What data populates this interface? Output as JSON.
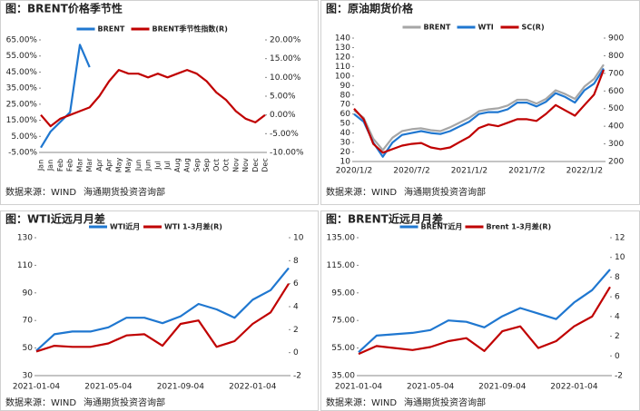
{
  "chart_data": [
    {
      "type": "line",
      "title": "图：BRENT价格季节性",
      "source": "数据来源：WIND",
      "org": "海通期货投资咨询部",
      "legend": "top",
      "x_label_rotate": true,
      "categories": [
        "Jan",
        "Jan",
        "Feb",
        "Feb",
        "Mar",
        "Mar",
        "Apr",
        "Apr",
        "May",
        "May",
        "Jun",
        "Jun",
        "Jul",
        "Jul",
        "Aug",
        "Aug",
        "Sep",
        "Sep",
        "Oct",
        "Oct",
        "Nov",
        "Nov",
        "Dec",
        "Dec"
      ],
      "series": [
        {
          "name": "BRENT",
          "color": "#1f77d0",
          "values": [
            -2,
            8,
            14,
            20,
            62,
            48,
            null,
            null,
            null,
            null,
            null,
            null,
            null,
            null,
            null,
            null,
            null,
            null,
            null,
            null,
            null,
            null,
            null,
            null
          ]
        },
        {
          "name": "BRENT季节性指数(R)",
          "color": "#c00000",
          "axis": "y2",
          "values": [
            0,
            -3,
            -1,
            0,
            1,
            2,
            5,
            9,
            12,
            11,
            11,
            10,
            11,
            10,
            11,
            12,
            11,
            9,
            6,
            4,
            1,
            -1,
            -2,
            0
          ]
        }
      ],
      "ylim": [
        -5,
        65
      ],
      "yticks": [
        {
          "value": -5,
          "label": "-5.00%"
        },
        {
          "value": 5,
          "label": "5.00%"
        },
        {
          "value": 15,
          "label": "15.00%"
        },
        {
          "value": 25,
          "label": "25.00%"
        },
        {
          "value": 35,
          "label": "35.00%"
        },
        {
          "value": 45,
          "label": "45.00%"
        },
        {
          "value": 55,
          "label": "55.00%"
        },
        {
          "value": 65,
          "label": "65.00%"
        }
      ],
      "y2lim": [
        -10,
        20
      ],
      "y2ticks": [
        {
          "value": -10,
          "label": "-10.00%"
        },
        {
          "value": -5,
          "label": "-5.00%"
        },
        {
          "value": 0,
          "label": "0.00%"
        },
        {
          "value": 5,
          "label": "5.00%"
        },
        {
          "value": 10,
          "label": "10.00%"
        },
        {
          "value": 15,
          "label": "15.00%"
        },
        {
          "value": 20,
          "label": "20.00%"
        }
      ]
    },
    {
      "type": "line",
      "title": "图：原油期货价格",
      "source": "数据来源：WIND",
      "org": "海通期货投资咨询部",
      "legend": "top",
      "x_label_rotate": false,
      "categories": [
        "2020/1/2",
        null,
        null,
        null,
        null,
        null,
        "2020/7/2",
        null,
        null,
        null,
        null,
        null,
        "2021/1/2",
        null,
        null,
        null,
        null,
        null,
        "2021/7/2",
        null,
        null,
        null,
        null,
        null,
        "2022/1/2",
        null,
        null
      ],
      "series": [
        {
          "name": "BRENT",
          "color": "#a6a6a6",
          "values": [
            64,
            56,
            34,
            22,
            35,
            42,
            44,
            45,
            43,
            42,
            46,
            51,
            56,
            63,
            65,
            66,
            69,
            75,
            75,
            71,
            76,
            85,
            81,
            76,
            89,
            97,
            112
          ]
        },
        {
          "name": "WTI",
          "color": "#1f77d0",
          "values": [
            60,
            52,
            30,
            15,
            30,
            38,
            40,
            42,
            40,
            39,
            42,
            47,
            52,
            60,
            62,
            62,
            65,
            72,
            72,
            68,
            73,
            82,
            78,
            72,
            85,
            92,
            108
          ]
        },
        {
          "name": "SC(R)",
          "color": "#c00000",
          "axis": "y2",
          "values": [
            500,
            440,
            300,
            250,
            270,
            290,
            300,
            305,
            280,
            270,
            280,
            310,
            340,
            390,
            410,
            400,
            420,
            440,
            440,
            430,
            470,
            520,
            490,
            460,
            520,
            580,
            720
          ]
        }
      ],
      "ylim": [
        10,
        140
      ],
      "yticks": [
        10,
        20,
        30,
        40,
        50,
        60,
        70,
        80,
        90,
        100,
        110,
        120,
        130,
        140
      ],
      "y2lim": [
        200,
        900
      ],
      "y2ticks": [
        200,
        300,
        400,
        500,
        600,
        700,
        800,
        900
      ]
    },
    {
      "type": "line",
      "title": "图：WTI近远月月差",
      "source": "数据来源：WIND",
      "org": "海通期货投资咨询部",
      "legend": "top",
      "x_label_rotate": false,
      "categories": [
        "2021-01-04",
        null,
        null,
        null,
        "2021-05-04",
        null,
        null,
        null,
        "2021-09-04",
        null,
        null,
        null,
        "2022-01-04",
        null,
        null
      ],
      "series": [
        {
          "name": "WTI近月",
          "color": "#1f77d0",
          "values": [
            48,
            60,
            62,
            62,
            65,
            72,
            72,
            68,
            73,
            82,
            78,
            72,
            85,
            92,
            108
          ]
        },
        {
          "name": "WTI 1-3月差(R)",
          "color": "#c00000",
          "axis": "y2",
          "values": [
            0.1,
            0.6,
            0.5,
            0.5,
            0.8,
            1.5,
            1.6,
            0.6,
            2.5,
            2.8,
            0.5,
            1,
            2.5,
            3.5,
            6
          ]
        }
      ],
      "ylim": [
        30,
        130
      ],
      "yticks": [
        30,
        50,
        70,
        90,
        110,
        130
      ],
      "y2lim": [
        -2,
        10
      ],
      "y2ticks": [
        -2,
        0,
        2,
        4,
        6,
        8,
        10
      ]
    },
    {
      "type": "line",
      "title": "图：BRENT近远月月差",
      "source": "数据来源：WIND",
      "org": "海通期货投资咨询部",
      "legend": "top",
      "x_label_rotate": false,
      "categories": [
        "2021-01-04",
        null,
        null,
        null,
        "2021-05-04",
        null,
        null,
        null,
        "2021-09-04",
        null,
        null,
        null,
        "2022-01-04",
        null,
        null
      ],
      "series": [
        {
          "name": "BRENT近月",
          "color": "#1f77d0",
          "values": [
            52,
            64,
            65,
            66,
            68,
            75,
            74,
            70,
            78,
            84,
            80,
            76,
            88,
            97,
            112
          ]
        },
        {
          "name": "Brent 1-3月差(R)",
          "color": "#c00000",
          "axis": "y2",
          "values": [
            0.2,
            1,
            0.8,
            0.6,
            0.9,
            1.5,
            1.8,
            0.5,
            2.5,
            3,
            0.8,
            1.5,
            3,
            4,
            7
          ]
        }
      ],
      "ylim": [
        35,
        135
      ],
      "yticks": [
        {
          "value": 35,
          "label": "35.00"
        },
        {
          "value": 55,
          "label": "55.00"
        },
        {
          "value": 75,
          "label": "75.00"
        },
        {
          "value": 95,
          "label": "95.00"
        },
        {
          "value": 115,
          "label": "115.00"
        },
        {
          "value": 135,
          "label": "135.00"
        }
      ],
      "y2lim": [
        -2,
        12
      ],
      "y2ticks": [
        -2,
        0,
        2,
        4,
        6,
        8,
        10,
        12
      ]
    }
  ]
}
